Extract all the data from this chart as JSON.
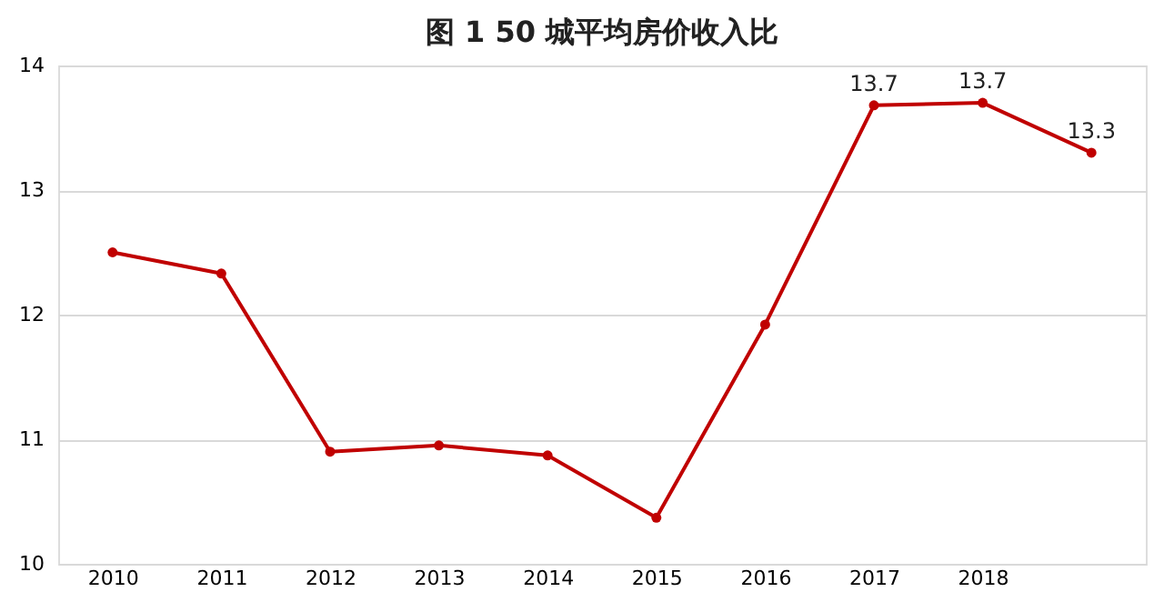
{
  "chart_data": {
    "type": "line",
    "title": "图 1    50 城平均房价收入比",
    "categories": [
      "2010",
      "2011",
      "2012",
      "2013",
      "2014",
      "2015",
      "2016",
      "2017",
      "2018",
      null
    ],
    "values": [
      12.5,
      12.33,
      10.9,
      10.95,
      10.87,
      10.37,
      11.92,
      13.68,
      13.7,
      13.3
    ],
    "value_labels": [
      null,
      null,
      null,
      null,
      null,
      null,
      null,
      "13.7",
      "13.7",
      "13.3"
    ],
    "color": "#c00000",
    "marker": "circle",
    "line_style": "solid",
    "ylim": [
      10,
      14
    ],
    "yticks": [
      10,
      11,
      12,
      13,
      14
    ],
    "grid": "y"
  }
}
